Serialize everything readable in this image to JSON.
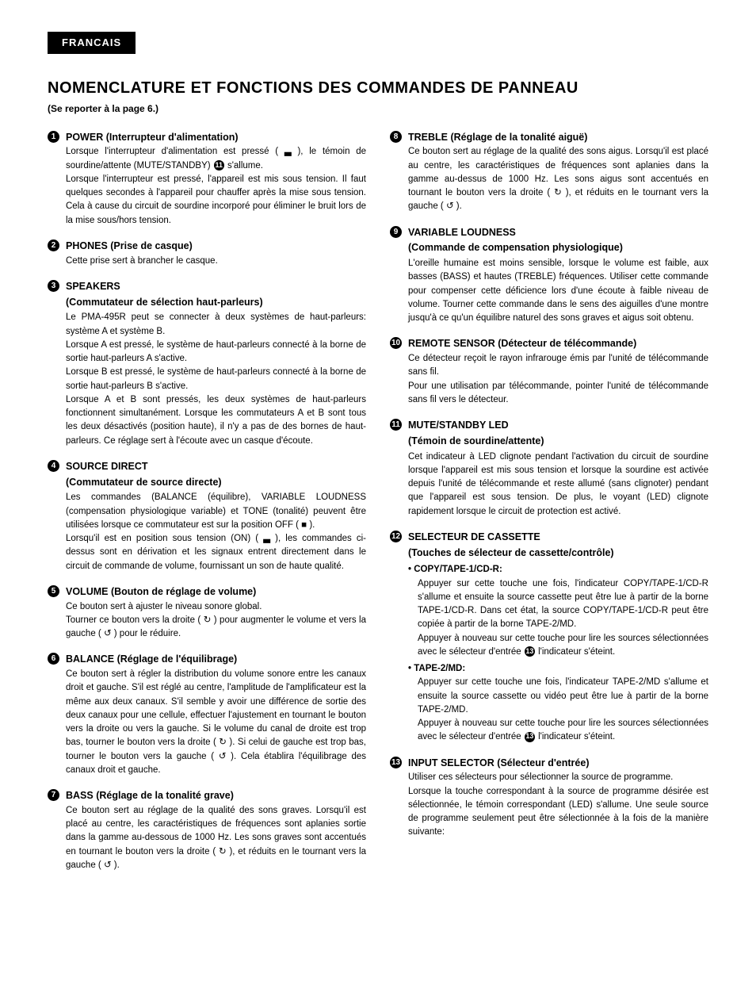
{
  "lang_tab": "FRANCAIS",
  "page_title": "NOMENCLATURE ET FONCTIONS DES COMMANDES DE PANNEAU",
  "page_subtitle": "(Se reporter à la page 6.)",
  "badges": {
    "b11": "11",
    "b13": "13"
  },
  "left": [
    {
      "num": "1",
      "title": "POWER (Interrupteur d'alimentation)",
      "text_a": "Lorsque l'interrupteur d'alimentation est pressé ( ▃ ), le témoin de sourdine/attente (MUTE/STANDBY) ",
      "text_b": " s'allume.",
      "text_c": "Lorsque l'interrupteur est pressé, l'appareil est mis sous tension. Il faut quelques secondes à l'appareil pour chauffer après la mise sous tension. Cela à cause du circuit de sourdine incorporé pour éliminer le bruit lors de la mise sous/hors tension."
    },
    {
      "num": "2",
      "title": "PHONES (Prise de casque)",
      "text": "Cette prise sert à brancher le casque."
    },
    {
      "num": "3",
      "title": "SPEAKERS",
      "subtitle": "(Commutateur de sélection haut-parleurs)",
      "text": "Le PMA-495R peut se connecter à deux systèmes de haut-parleurs: système A et système B.\nLorsque A est pressé, le système de haut-parleurs connecté à la borne de sortie haut-parleurs A s'active.\nLorsque B est pressé, le système de haut-parleurs connecté à la borne de sortie haut-parleurs B s'active.\nLorsque A et B sont pressés, les deux systèmes de haut-parleurs fonctionnent simultanément. Lorsque les commutateurs A et B sont tous les deux désactivés (position haute), il n'y a pas de des bornes de haut-parleurs. Ce réglage sert à l'écoute avec un casque d'écoute."
    },
    {
      "num": "4",
      "title": "SOURCE DIRECT",
      "subtitle": "(Commutateur de source directe)",
      "text": "Les commandes (BALANCE (équilibre), VARIABLE LOUDNESS (compensation physiologique variable) et TONE (tonalité) peuvent être utilisées lorsque ce commutateur est sur la position OFF ( ■ ).\nLorsqu'il est en position sous tension (ON) ( ▃ ), les commandes ci-dessus sont en dérivation et les signaux entrent directement dans le circuit de commande de volume, fournissant un son de haute qualité."
    },
    {
      "num": "5",
      "title": "VOLUME (Bouton de réglage de volume)",
      "text": "Ce bouton sert à ajuster le niveau sonore global.\nTourner ce bouton vers la droite ( ↻ ) pour augmenter le volume et vers la gauche ( ↺ ) pour le réduire."
    },
    {
      "num": "6",
      "title": "BALANCE (Réglage de l'équilibrage)",
      "text": "Ce bouton sert à régler la distribution du volume sonore entre les canaux droit et gauche. S'il est réglé au centre, l'amplitude de l'amplificateur est la même aux deux canaux. S'il semble y avoir une différence de sortie des deux canaux pour une cellule, effectuer l'ajustement en tournant le bouton vers la droite ou vers la gauche. Si le volume du canal de droite est trop bas, tourner le bouton vers la droite ( ↻ ). Si celui de gauche est trop bas, tourner le bouton vers la gauche ( ↺ ). Cela établira l'équilibrage des canaux droit et gauche."
    },
    {
      "num": "7",
      "title": "BASS (Réglage de la tonalité grave)",
      "text": "Ce bouton sert au réglage de la qualité des sons graves. Lorsqu'il est placé au centre, les caractéristiques de fréquences sont aplanies sortie dans la gamme au-dessous de 1000 Hz. Les sons graves sont accentués en tournant le bouton vers la droite ( ↻ ), et réduits en le tournant vers la gauche ( ↺ )."
    }
  ],
  "right": [
    {
      "num": "8",
      "title": "TREBLE (Réglage de la tonalité aiguë)",
      "text": "Ce bouton sert au réglage de la qualité des sons aigus. Lorsqu'il est placé au centre, les caractéristiques de fréquences sont aplanies dans la gamme au-dessus de 1000 Hz. Les sons aigus sont accentués en tournant le bouton vers la droite ( ↻ ), et réduits en le tournant vers la gauche ( ↺ )."
    },
    {
      "num": "9",
      "title": "VARIABLE LOUDNESS",
      "subtitle": "(Commande de compensation physiologique)",
      "text": "L'oreille humaine est moins sensible, lorsque le volume est faible, aux basses (BASS) et hautes (TREBLE) fréquences. Utiliser cette commande pour compenser cette déficience lors d'une écoute à faible niveau de volume. Tourner cette commande dans le sens des aiguilles d'une montre jusqu'à ce qu'un équilibre naturel des sons graves et aigus soit obtenu."
    },
    {
      "num": "10",
      "title": "REMOTE SENSOR (Détecteur de télécommande)",
      "text": "Ce détecteur reçoit le rayon infrarouge émis par l'unité de télécommande sans fil.\nPour une utilisation par télécommande, pointer l'unité de télécommande sans fil vers le détecteur."
    },
    {
      "num": "11",
      "title": "MUTE/STANDBY LED",
      "subtitle": "(Témoin de sourdine/attente)",
      "text": "Cet indicateur à LED clignote pendant l'activation du circuit de sourdine lorsque l'appareil est mis sous tension et lorsque la sourdine est activée depuis l'unité de télécommande et reste allumé (sans clignoter) pendant que l'appareil est sous tension. De plus, le voyant (LED) clignote rapidement lorsque le circuit de protection est activé."
    },
    {
      "num": "12",
      "title": "SELECTEUR DE CASSETTE",
      "subtitle": "(Touches de sélecteur de cassette/contrôle)",
      "sub1_title": "• COPY/TAPE-1/CD-R:",
      "sub1_text_a": "Appuyer sur cette touche une fois, l'indicateur COPY/TAPE-1/CD-R s'allume et ensuite la source cassette peut être lue à partir de la borne TAPE-1/CD-R. Dans cet état, la source COPY/TAPE-1/CD-R peut être copiée à partir de la borne TAPE-2/MD.",
      "sub1_text_b": "Appuyer à nouveau sur cette touche pour lire les sources sélectionnées avec le sélecteur d'entrée ",
      "sub1_text_c": " l'indicateur s'éteint.",
      "sub2_title": "• TAPE-2/MD:",
      "sub2_text_a": "Appuyer sur cette touche une fois, l'indicateur TAPE-2/MD s'allume et ensuite la source cassette ou vidéo peut être lue à partir de la borne TAPE-2/MD.",
      "sub2_text_b": "Appuyer à nouveau sur cette touche pour lire les sources sélectionnées avec le sélecteur d'entrée ",
      "sub2_text_c": " l'indicateur s'éteint."
    },
    {
      "num": "13",
      "title": "INPUT SELECTOR (Sélecteur d'entrée)",
      "text": "Utiliser ces sélecteurs pour sélectionner la source de programme.\nLorsque la touche correspondant à la source de programme désirée est sélectionnée, le témoin correspondant (LED) s'allume. Une seule source de programme seulement peut être sélectionnée à la fois de la manière suivante:"
    }
  ]
}
